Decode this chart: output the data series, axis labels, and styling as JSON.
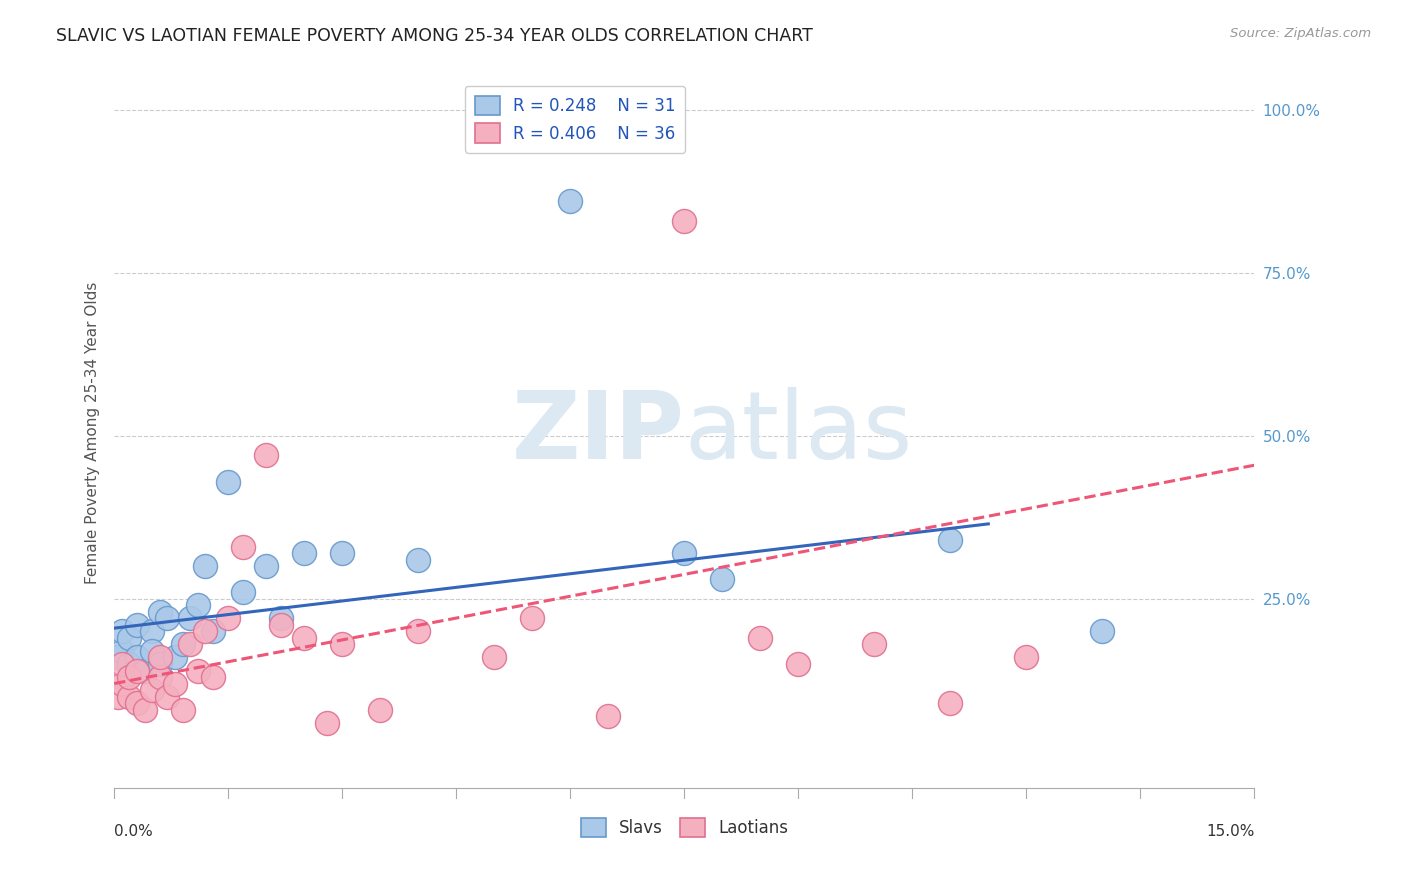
{
  "title": "SLAVIC VS LAOTIAN FEMALE POVERTY AMONG 25-34 YEAR OLDS CORRELATION CHART",
  "source": "Source: ZipAtlas.com",
  "ylabel": "Female Poverty Among 25-34 Year Olds",
  "xmin": 0.0,
  "xmax": 0.15,
  "ymin": -0.04,
  "ymax": 1.05,
  "watermark_zip": "ZIP",
  "watermark_atlas": "atlas",
  "slavs_color": "#aac8e8",
  "laotians_color": "#f5b0c0",
  "slavs_edge": "#6699cc",
  "laotians_edge": "#e07090",
  "trend_slavs_color": "#3366bb",
  "trend_laotians_color": "#ee5577",
  "legend_R_slavs": "R = 0.248",
  "legend_N_slavs": "N = 31",
  "legend_R_laotians": "R = 0.406",
  "legend_N_laotians": "N = 36",
  "slavs_x": [
    0.0005,
    0.001,
    0.001,
    0.002,
    0.002,
    0.003,
    0.003,
    0.004,
    0.005,
    0.005,
    0.006,
    0.006,
    0.007,
    0.008,
    0.009,
    0.01,
    0.011,
    0.012,
    0.013,
    0.015,
    0.017,
    0.02,
    0.022,
    0.025,
    0.03,
    0.04,
    0.06,
    0.075,
    0.08,
    0.11,
    0.13
  ],
  "slavs_y": [
    0.16,
    0.17,
    0.2,
    0.15,
    0.19,
    0.16,
    0.21,
    0.14,
    0.2,
    0.17,
    0.15,
    0.23,
    0.22,
    0.16,
    0.18,
    0.22,
    0.24,
    0.3,
    0.2,
    0.43,
    0.26,
    0.3,
    0.22,
    0.32,
    0.32,
    0.31,
    0.86,
    0.32,
    0.28,
    0.34,
    0.2
  ],
  "laotians_x": [
    0.0005,
    0.001,
    0.001,
    0.002,
    0.002,
    0.003,
    0.003,
    0.004,
    0.005,
    0.006,
    0.006,
    0.007,
    0.008,
    0.009,
    0.01,
    0.011,
    0.012,
    0.013,
    0.015,
    0.017,
    0.02,
    0.022,
    0.025,
    0.028,
    0.03,
    0.035,
    0.04,
    0.05,
    0.055,
    0.065,
    0.075,
    0.085,
    0.09,
    0.1,
    0.11,
    0.12
  ],
  "laotians_y": [
    0.1,
    0.12,
    0.15,
    0.1,
    0.13,
    0.09,
    0.14,
    0.08,
    0.11,
    0.13,
    0.16,
    0.1,
    0.12,
    0.08,
    0.18,
    0.14,
    0.2,
    0.13,
    0.22,
    0.33,
    0.47,
    0.21,
    0.19,
    0.06,
    0.18,
    0.08,
    0.2,
    0.16,
    0.22,
    0.07,
    0.83,
    0.19,
    0.15,
    0.18,
    0.09,
    0.16
  ],
  "slavs_trend_x0": 0.0,
  "slavs_trend_y0": 0.205,
  "slavs_trend_x1": 0.115,
  "slavs_trend_y1": 0.365,
  "laotians_trend_x0": 0.0,
  "laotians_trend_y0": 0.12,
  "laotians_trend_x1": 0.15,
  "laotians_trend_y1": 0.455
}
